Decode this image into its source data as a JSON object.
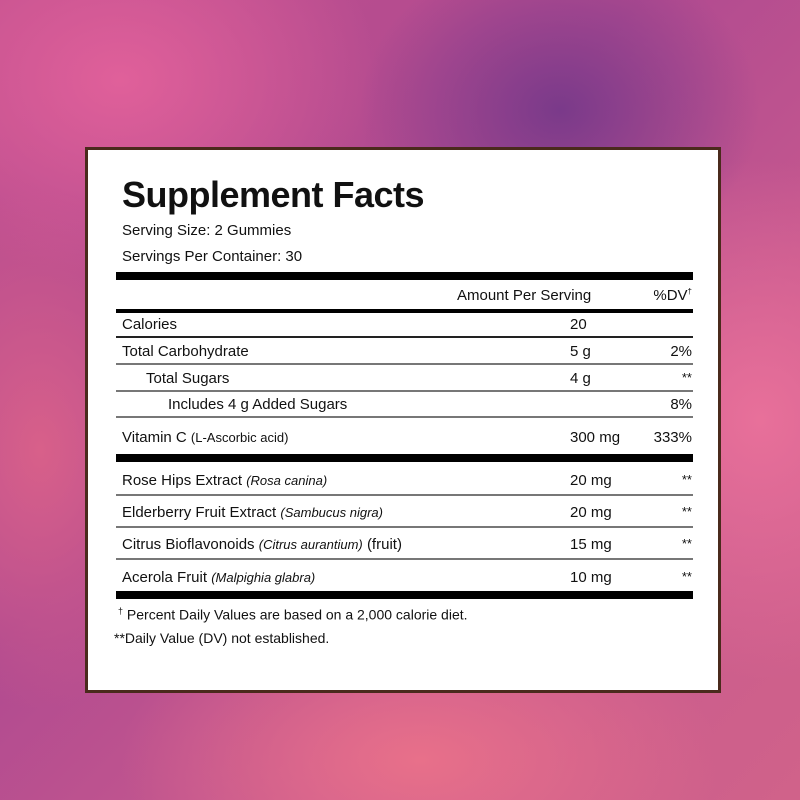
{
  "title": "Supplement Facts",
  "serving_size": "Serving Size: 2 Gummies",
  "servings_per_container": "Servings Per Container: 30",
  "header": {
    "amount": "Amount Per Serving",
    "dv": "%DV",
    "dv_mark": "†"
  },
  "rows": [
    {
      "name": "Calories",
      "amount": "20",
      "dv": ""
    },
    {
      "name": "Total Carbohydrate",
      "amount": "5 g",
      "dv": "2%"
    },
    {
      "name": "Total Sugars",
      "amount": "4 g",
      "dv": "**"
    },
    {
      "name": "Includes 4 g Added Sugars",
      "amount": "",
      "dv": "8%"
    },
    {
      "name": "Vitamin C",
      "source": "(L-Ascorbic acid)",
      "amount": "300 mg",
      "dv": "333%"
    }
  ],
  "botanicals": [
    {
      "name": "Rose Hips Extract",
      "latin": "(Rosa canina)",
      "suffix": "",
      "amount": "20 mg",
      "dv": "**"
    },
    {
      "name": "Elderberry Fruit Extract",
      "latin": "(Sambucus nigra)",
      "suffix": "",
      "amount": "20 mg",
      "dv": "**"
    },
    {
      "name": "Citrus Bioflavonoids",
      "latin": "(Citrus aurantium)",
      "suffix": "(fruit)",
      "amount": "15 mg",
      "dv": "**"
    },
    {
      "name": "Acerola Fruit",
      "latin": "(Malpighia glabra)",
      "suffix": "",
      "amount": "10 mg",
      "dv": "**"
    }
  ],
  "footnotes": {
    "dagger": "†",
    "percent": "Percent Daily Values are based on a 2,000 calorie diet.",
    "not_established": "**Daily Value (DV) not established."
  }
}
